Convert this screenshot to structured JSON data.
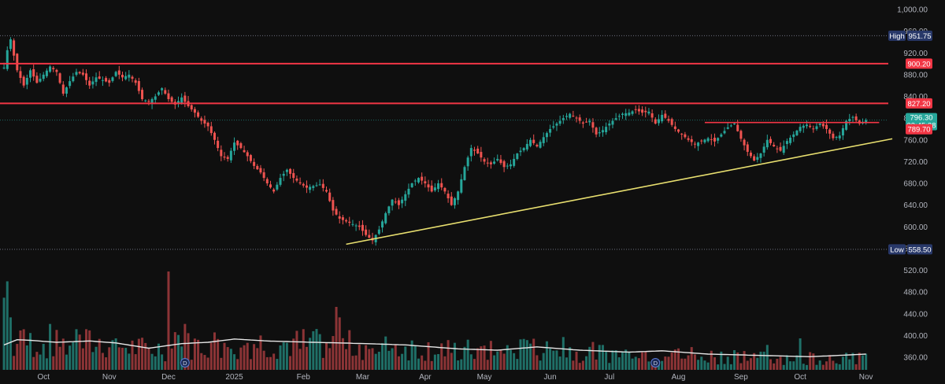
{
  "chart_data": {
    "type": "candlestick",
    "y_axis": {
      "ticks": [
        "1,000.00",
        "960.00",
        "920.00",
        "880.00",
        "840.00",
        "800.00",
        "760.00",
        "720.00",
        "680.00",
        "640.00",
        "600.00",
        "560.00",
        "520.00",
        "480.00",
        "440.00",
        "400.00",
        "360.00"
      ],
      "tick_values": [
        1000,
        960,
        920,
        880,
        840,
        800,
        760,
        720,
        680,
        640,
        600,
        560,
        520,
        480,
        440,
        400,
        360
      ],
      "range": [
        345,
        1008
      ],
      "position": "right"
    },
    "x_axis": {
      "labels": [
        "Oct",
        "Nov",
        "Dec",
        "2025",
        "Feb",
        "Mar",
        "Apr",
        "May",
        "Jun",
        "Jul",
        "Aug",
        "Sep",
        "Oct",
        "Nov"
      ],
      "label_indices": [
        12,
        32,
        50,
        70,
        91,
        109,
        128,
        146,
        166,
        184,
        205,
        224,
        242,
        262
      ],
      "total_slots": 270
    },
    "price_anchors": [
      [
        0,
        893
      ],
      [
        1,
        925
      ],
      [
        2,
        945
      ],
      [
        3,
        915
      ],
      [
        4,
        888
      ],
      [
        6,
        860
      ],
      [
        8,
        888
      ],
      [
        10,
        865
      ],
      [
        12,
        880
      ],
      [
        14,
        895
      ],
      [
        16,
        885
      ],
      [
        18,
        845
      ],
      [
        20,
        868
      ],
      [
        22,
        885
      ],
      [
        24,
        880
      ],
      [
        26,
        860
      ],
      [
        28,
        875
      ],
      [
        30,
        870
      ],
      [
        32,
        865
      ],
      [
        34,
        885
      ],
      [
        36,
        875
      ],
      [
        38,
        880
      ],
      [
        40,
        865
      ],
      [
        42,
        835
      ],
      [
        44,
        830
      ],
      [
        46,
        840
      ],
      [
        48,
        855
      ],
      [
        50,
        835
      ],
      [
        52,
        825
      ],
      [
        54,
        838
      ],
      [
        56,
        822
      ],
      [
        58,
        810
      ],
      [
        60,
        795
      ],
      [
        62,
        785
      ],
      [
        64,
        760
      ],
      [
        66,
        730
      ],
      [
        68,
        725
      ],
      [
        70,
        755
      ],
      [
        72,
        745
      ],
      [
        74,
        730
      ],
      [
        76,
        712
      ],
      [
        78,
        700
      ],
      [
        80,
        680
      ],
      [
        82,
        665
      ],
      [
        84,
        690
      ],
      [
        86,
        705
      ],
      [
        88,
        690
      ],
      [
        90,
        680
      ],
      [
        92,
        672
      ],
      [
        94,
        675
      ],
      [
        96,
        678
      ],
      [
        98,
        665
      ],
      [
        100,
        630
      ],
      [
        102,
        615
      ],
      [
        104,
        610
      ],
      [
        106,
        605
      ],
      [
        108,
        600
      ],
      [
        110,
        585
      ],
      [
        112,
        575
      ],
      [
        114,
        595
      ],
      [
        116,
        625
      ],
      [
        118,
        650
      ],
      [
        120,
        640
      ],
      [
        122,
        660
      ],
      [
        124,
        680
      ],
      [
        126,
        690
      ],
      [
        128,
        680
      ],
      [
        130,
        665
      ],
      [
        132,
        680
      ],
      [
        134,
        665
      ],
      [
        136,
        640
      ],
      [
        138,
        665
      ],
      [
        140,
        710
      ],
      [
        142,
        745
      ],
      [
        144,
        735
      ],
      [
        146,
        720
      ],
      [
        148,
        715
      ],
      [
        150,
        725
      ],
      [
        152,
        710
      ],
      [
        154,
        715
      ],
      [
        156,
        735
      ],
      [
        158,
        745
      ],
      [
        160,
        760
      ],
      [
        162,
        748
      ],
      [
        164,
        765
      ],
      [
        166,
        780
      ],
      [
        168,
        790
      ],
      [
        170,
        800
      ],
      [
        172,
        808
      ],
      [
        174,
        800
      ],
      [
        176,
        790
      ],
      [
        178,
        795
      ],
      [
        180,
        770
      ],
      [
        182,
        778
      ],
      [
        184,
        790
      ],
      [
        186,
        800
      ],
      [
        188,
        808
      ],
      [
        190,
        810
      ],
      [
        192,
        815
      ],
      [
        194,
        810
      ],
      [
        196,
        812
      ],
      [
        198,
        790
      ],
      [
        200,
        806
      ],
      [
        202,
        795
      ],
      [
        204,
        780
      ],
      [
        206,
        770
      ],
      [
        208,
        760
      ],
      [
        210,
        752
      ],
      [
        212,
        758
      ],
      [
        214,
        763
      ],
      [
        216,
        757
      ],
      [
        218,
        770
      ],
      [
        220,
        783
      ],
      [
        222,
        790
      ],
      [
        224,
        762
      ],
      [
        226,
        738
      ],
      [
        228,
        722
      ],
      [
        230,
        735
      ],
      [
        232,
        760
      ],
      [
        234,
        748
      ],
      [
        236,
        740
      ],
      [
        238,
        758
      ],
      [
        240,
        770
      ],
      [
        242,
        784
      ],
      [
        244,
        788
      ],
      [
        246,
        780
      ],
      [
        248,
        790
      ],
      [
        250,
        780
      ],
      [
        252,
        763
      ],
      [
        254,
        768
      ],
      [
        256,
        795
      ],
      [
        258,
        802
      ],
      [
        260,
        790
      ],
      [
        262,
        796.3
      ]
    ],
    "volume_ma_anchors": [
      [
        0,
        38
      ],
      [
        4,
        46
      ],
      [
        8,
        45
      ],
      [
        16,
        42
      ],
      [
        26,
        44
      ],
      [
        34,
        41
      ],
      [
        44,
        33
      ],
      [
        54,
        40
      ],
      [
        62,
        42
      ],
      [
        70,
        47
      ],
      [
        80,
        44
      ],
      [
        94,
        42
      ],
      [
        110,
        40
      ],
      [
        122,
        38
      ],
      [
        138,
        32
      ],
      [
        150,
        30
      ],
      [
        162,
        35
      ],
      [
        175,
        30
      ],
      [
        190,
        27
      ],
      [
        200,
        29
      ],
      [
        214,
        24
      ],
      [
        230,
        22
      ],
      [
        245,
        20
      ],
      [
        262,
        24
      ]
    ],
    "volume_spikes": [
      [
        0,
        110
      ],
      [
        1,
        135
      ],
      [
        2,
        80
      ],
      [
        5,
        60
      ],
      [
        14,
        70
      ],
      [
        22,
        62
      ],
      [
        34,
        48
      ],
      [
        50,
        150
      ],
      [
        55,
        70
      ],
      [
        65,
        47
      ],
      [
        72,
        34
      ],
      [
        90,
        32
      ],
      [
        101,
        96
      ],
      [
        102,
        80
      ],
      [
        112,
        33
      ],
      [
        118,
        33
      ],
      [
        132,
        24
      ],
      [
        140,
        35
      ],
      [
        146,
        37
      ],
      [
        150,
        28
      ],
      [
        160,
        40
      ],
      [
        170,
        50
      ],
      [
        178,
        35
      ],
      [
        190,
        27
      ],
      [
        195,
        28
      ],
      [
        202,
        20
      ],
      [
        212,
        20
      ],
      [
        222,
        30
      ],
      [
        232,
        38
      ],
      [
        242,
        48
      ],
      [
        246,
        25
      ],
      [
        255,
        20
      ],
      [
        260,
        26
      ]
    ],
    "high": 951.75,
    "low": 558.5,
    "last_price": 796.3,
    "countdown": "03:45:28",
    "prior_close": 789.7,
    "resistance_levels": [
      900.2,
      827.2
    ],
    "short_resistance": {
      "price": 792,
      "from": 213,
      "to": 262
    },
    "trendline": {
      "from": [
        104,
        568
      ],
      "to": [
        270,
        762
      ],
      "color": "#e8df6f"
    },
    "markers": [
      {
        "index": 55,
        "label": "D"
      },
      {
        "index": 198,
        "label": "D"
      }
    ],
    "colors": {
      "up": "#26a69a",
      "down": "#ef5350",
      "resistance": "#f23645",
      "trendline": "#e8df6f",
      "vol_ma": "#e6e6e6",
      "badge_dark": "#283869",
      "last_price": "#26a69a"
    },
    "high_label": "High",
    "low_label": "Low",
    "grid": false,
    "legend": "none"
  }
}
